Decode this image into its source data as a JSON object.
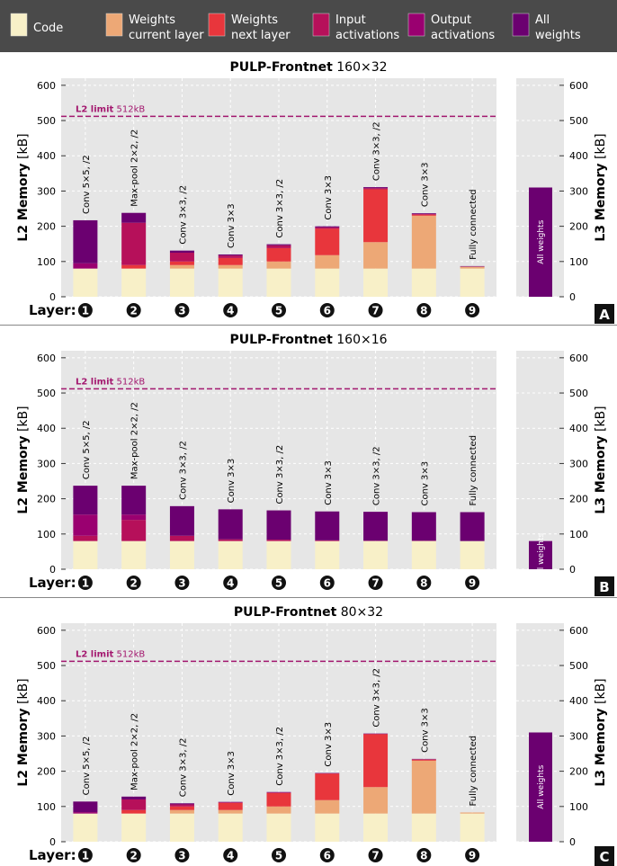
{
  "legend": [
    {
      "line1": "Code",
      "line2": "",
      "color": "#f8f0c8"
    },
    {
      "line1": "Weights",
      "line2": "current layer",
      "color": "#eda876"
    },
    {
      "line1": "Weights",
      "line2": "next layer",
      "color": "#e8363c"
    },
    {
      "line1": "Input",
      "line2": "activations",
      "color": "#b6105a"
    },
    {
      "line1": "Output",
      "line2": "activations",
      "color": "#9a0070"
    },
    {
      "line1": "All",
      "line2": "weights",
      "color": "#6b0070"
    }
  ],
  "colors": {
    "code": "#f8f0c8",
    "w_cur": "#eda876",
    "w_next": "#e8363c",
    "in_act": "#b6105a",
    "out_act": "#9a0070",
    "all_w": "#6b0070",
    "limit": "#a3186f",
    "plot_bg": "#e6e6e6",
    "grid": "#ffffff"
  },
  "axis_labels": {
    "l2": "L2 Memory",
    "l3": "L3 Memory",
    "unit": "[kB]",
    "layer": "Layer:"
  },
  "limit_label": {
    "bold": "L2 limit",
    "value": "512kB"
  },
  "l3_bar_label": "All weights",
  "chart_data": [
    {
      "type": "bar",
      "title_bold": "PULP-Frontnet",
      "title_rest": "160×32",
      "panel_letter": "A",
      "ylim": [
        0,
        620
      ],
      "yticks": [
        0,
        100,
        200,
        300,
        400,
        500,
        600
      ],
      "l2_limit": 512,
      "layer_numbers": [
        "1",
        "2",
        "3",
        "4",
        "5",
        "6",
        "7",
        "8",
        "9"
      ],
      "layer_labels": [
        "Conv 5×5, /2",
        "Max-pool 2×2, /2",
        "Conv 3×3, /2",
        "Conv 3×3",
        "Conv 3×3, /2",
        "Conv 3×3",
        "Conv 3×3, /2",
        "Conv 3×3",
        "Fully connected"
      ],
      "series": [
        {
          "name": "Code",
          "key": "code",
          "values": [
            80,
            80,
            80,
            80,
            80,
            80,
            80,
            80,
            80
          ]
        },
        {
          "name": "Weights current layer",
          "key": "w_cur",
          "values": [
            0,
            0,
            10,
            10,
            20,
            38,
            75,
            150,
            5
          ]
        },
        {
          "name": "Weights next layer",
          "key": "w_next",
          "values": [
            0,
            10,
            10,
            20,
            38,
            75,
            150,
            3,
            0
          ]
        },
        {
          "name": "Input activations",
          "key": "in_act",
          "values": [
            0,
            120,
            25,
            7,
            8,
            4,
            3,
            2,
            1
          ]
        },
        {
          "name": "Output activations",
          "key": "out_act",
          "values": [
            15,
            0,
            0,
            0,
            0,
            0,
            0,
            0,
            0
          ]
        },
        {
          "name": "All weights",
          "key": "all_w",
          "values": [
            122,
            28,
            6,
            3,
            3,
            3,
            3,
            2,
            1
          ]
        }
      ],
      "l3_value": 310
    },
    {
      "type": "bar",
      "title_bold": "PULP-Frontnet",
      "title_rest": "160×16",
      "panel_letter": "B",
      "ylim": [
        0,
        620
      ],
      "yticks": [
        0,
        100,
        200,
        300,
        400,
        500,
        600
      ],
      "l2_limit": 512,
      "layer_numbers": [
        "1",
        "2",
        "3",
        "4",
        "5",
        "6",
        "7",
        "8",
        "9"
      ],
      "layer_labels": [
        "Conv 5×5, /2",
        "Max-pool 2×2, /2",
        "Conv 3×3, /2",
        "Conv 3×3",
        "Conv 3×3, /2",
        "Conv 3×3",
        "Conv 3×3, /2",
        "Conv 3×3",
        "Fully connected"
      ],
      "series": [
        {
          "name": "Code",
          "key": "code",
          "values": [
            80,
            80,
            80,
            80,
            80,
            80,
            80,
            80,
            80
          ]
        },
        {
          "name": "Weights current layer",
          "key": "w_cur",
          "values": [
            0,
            0,
            0,
            0,
            0,
            0,
            0,
            0,
            0
          ]
        },
        {
          "name": "Weights next layer",
          "key": "w_next",
          "values": [
            0,
            0,
            0,
            0,
            0,
            0,
            0,
            0,
            0
          ]
        },
        {
          "name": "Input activations",
          "key": "in_act",
          "values": [
            15,
            60,
            15,
            5,
            4,
            2,
            1,
            1,
            0
          ]
        },
        {
          "name": "Output activations",
          "key": "out_act",
          "values": [
            60,
            15,
            0,
            0,
            0,
            0,
            0,
            0,
            0
          ]
        },
        {
          "name": "All weights",
          "key": "all_w",
          "values": [
            82,
            82,
            84,
            85,
            83,
            82,
            82,
            81,
            82
          ]
        }
      ],
      "l3_value": 80
    },
    {
      "type": "bar",
      "title_bold": "PULP-Frontnet",
      "title_rest": "80×32",
      "panel_letter": "C",
      "ylim": [
        0,
        620
      ],
      "yticks": [
        0,
        100,
        200,
        300,
        400,
        500,
        600
      ],
      "l2_limit": 512,
      "layer_numbers": [
        "1",
        "2",
        "3",
        "4",
        "5",
        "6",
        "7",
        "8",
        "9"
      ],
      "layer_labels": [
        "Conv 5×5, /2",
        "Max-pool 2×2, /2",
        "Conv 3×3, /2",
        "Conv 3×3",
        "Conv 3×3, /2",
        "Conv 3×3",
        "Conv 3×3, /2",
        "Conv 3×3",
        "Fully connected"
      ],
      "series": [
        {
          "name": "Code",
          "key": "code",
          "values": [
            80,
            80,
            80,
            80,
            80,
            80,
            80,
            80,
            80
          ]
        },
        {
          "name": "Weights current layer",
          "key": "w_cur",
          "values": [
            0,
            0,
            10,
            10,
            20,
            38,
            75,
            150,
            3
          ]
        },
        {
          "name": "Weights next layer",
          "key": "w_next",
          "values": [
            0,
            10,
            10,
            20,
            38,
            75,
            150,
            3,
            0
          ]
        },
        {
          "name": "Input activations",
          "key": "in_act",
          "values": [
            0,
            30,
            6,
            2,
            2,
            1,
            1,
            1,
            0
          ]
        },
        {
          "name": "Output activations",
          "key": "out_act",
          "values": [
            4,
            0,
            0,
            0,
            0,
            0,
            0,
            0,
            0
          ]
        },
        {
          "name": "All weights",
          "key": "all_w",
          "values": [
            30,
            8,
            3,
            1,
            1,
            1,
            1,
            1,
            0
          ]
        }
      ],
      "l3_value": 310
    }
  ]
}
